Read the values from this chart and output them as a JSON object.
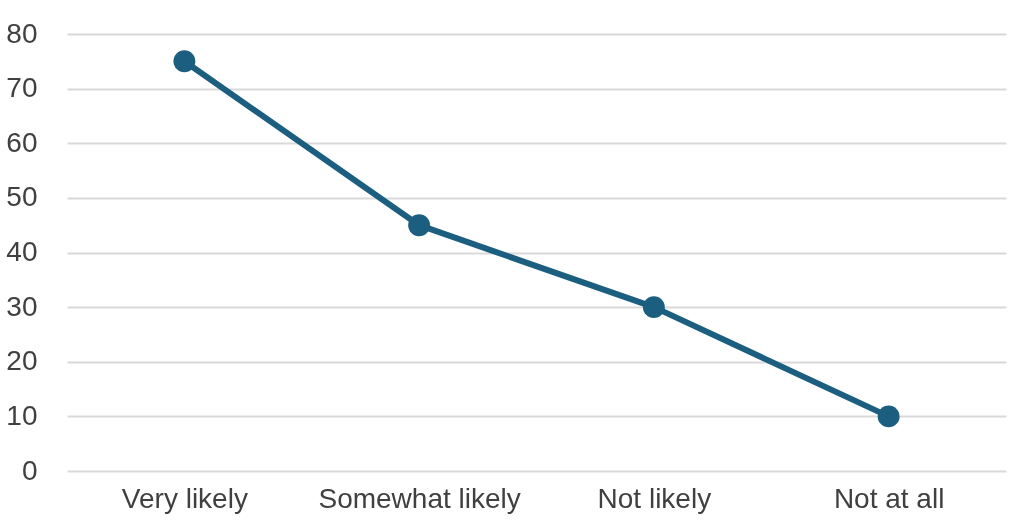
{
  "chart_data": {
    "type": "line",
    "categories": [
      "Very likely",
      "Somewhat likely",
      "Not likely",
      "Not at all"
    ],
    "series": [
      {
        "color": "#1b5e7f",
        "values": [
          75,
          45,
          30,
          10
        ]
      }
    ],
    "ylim": [
      0,
      80
    ],
    "yticks": [
      0,
      10,
      20,
      30,
      40,
      50,
      60,
      70,
      80
    ],
    "grid": "y",
    "marker": "circle",
    "line_style": "solid",
    "legend": false
  }
}
